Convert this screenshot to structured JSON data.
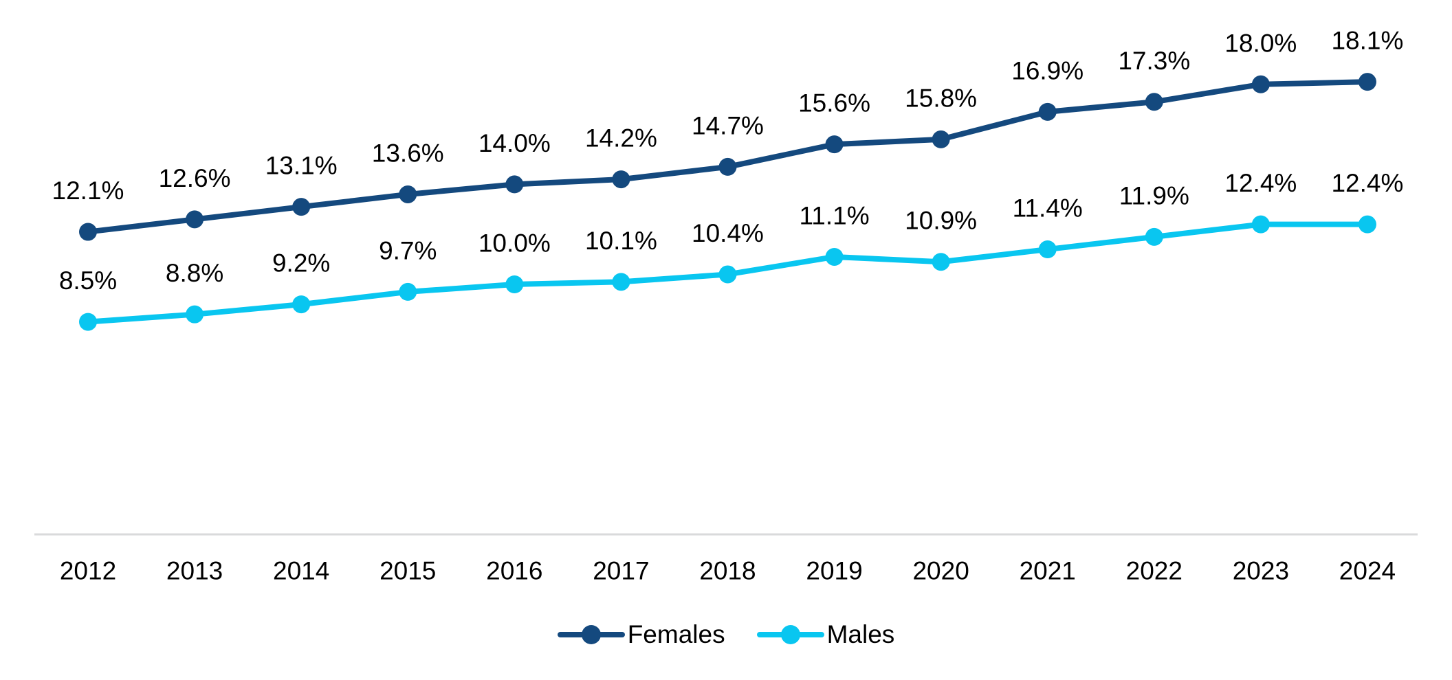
{
  "chart_data": {
    "type": "line",
    "x": [
      "2012",
      "2013",
      "2014",
      "2015",
      "2016",
      "2017",
      "2018",
      "2019",
      "2020",
      "2021",
      "2022",
      "2023",
      "2024"
    ],
    "series": [
      {
        "name": "Females",
        "color": "#14497E",
        "values": [
          12.1,
          12.6,
          13.1,
          13.6,
          14.0,
          14.2,
          14.7,
          15.6,
          15.8,
          16.9,
          17.3,
          18.0,
          18.1
        ],
        "labels": [
          "12.1%",
          "12.6%",
          "13.1%",
          "13.6%",
          "14.0%",
          "14.2%",
          "14.7%",
          "15.6%",
          "15.8%",
          "16.9%",
          "17.3%",
          "18.0%",
          "18.1%"
        ]
      },
      {
        "name": "Males",
        "color": "#09C6F0",
        "values": [
          8.5,
          8.8,
          9.2,
          9.7,
          10.0,
          10.1,
          10.4,
          11.1,
          10.9,
          11.4,
          11.9,
          12.4,
          12.4
        ],
        "labels": [
          "8.5%",
          "8.8%",
          "9.2%",
          "9.7%",
          "10.0%",
          "10.1%",
          "10.4%",
          "11.1%",
          "10.9%",
          "11.4%",
          "11.9%",
          "12.4%",
          "12.4%"
        ]
      }
    ],
    "title": "",
    "xlabel": "",
    "ylabel": "",
    "ylim": [
      0,
      21
    ],
    "grid": false,
    "legend_position": "bottom",
    "axis_line_color": "#D9DADB",
    "label_color": "#000000"
  }
}
